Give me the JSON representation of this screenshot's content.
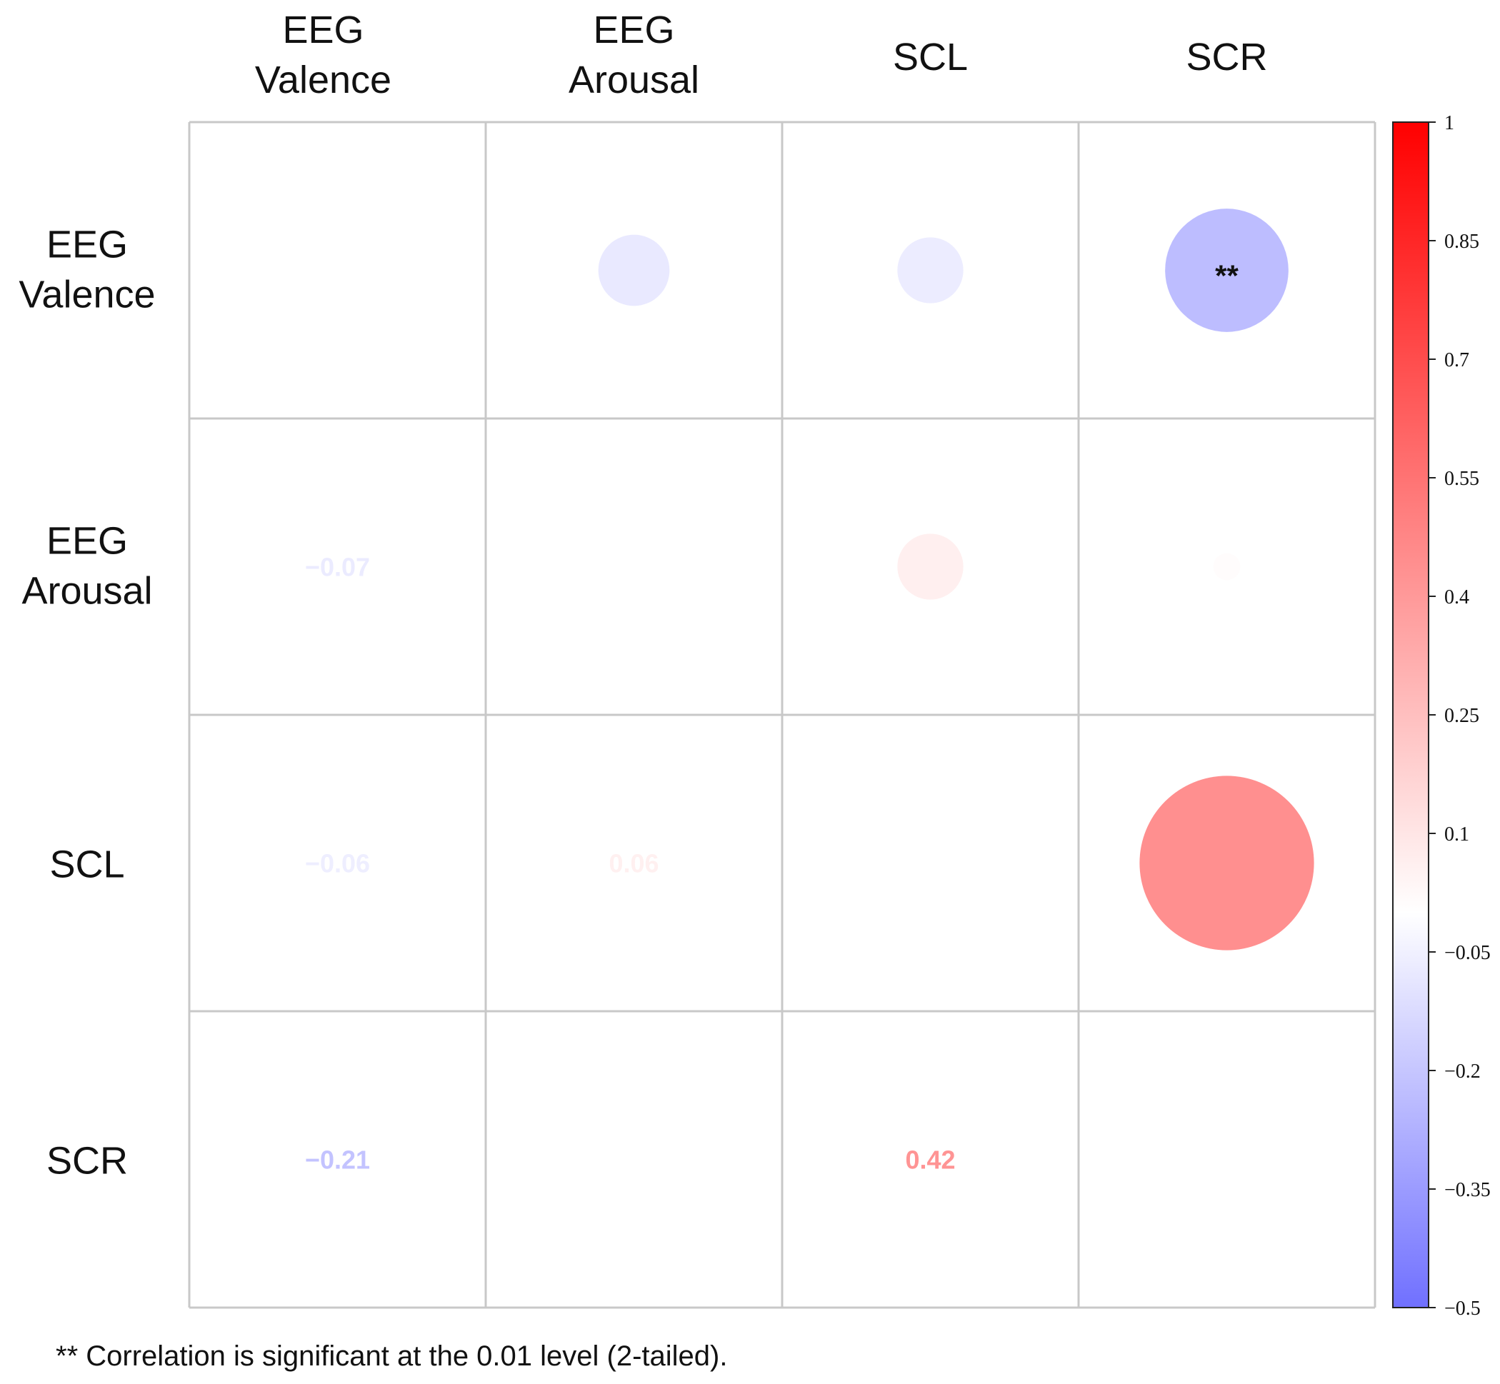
{
  "chart_data": {
    "type": "heatmap",
    "subtype": "correlation-matrix",
    "variables": [
      "EEG Valence",
      "EEG Arousal",
      "SCL",
      "SCR"
    ],
    "column_labels": [
      [
        "EEG",
        "Valence"
      ],
      [
        "EEG",
        "Arousal"
      ],
      [
        "SCL"
      ],
      [
        "SCR"
      ]
    ],
    "row_labels": [
      [
        "EEG",
        "Valence"
      ],
      [
        "EEG",
        "Arousal"
      ],
      [
        "SCL"
      ],
      [
        "SCR"
      ]
    ],
    "lower_triangle_values": [
      {
        "row": 1,
        "col": 0,
        "value": -0.07,
        "label": "−0.07"
      },
      {
        "row": 2,
        "col": 0,
        "value": -0.06,
        "label": "−0.06"
      },
      {
        "row": 2,
        "col": 1,
        "value": 0.06,
        "label": "0.06"
      },
      {
        "row": 3,
        "col": 0,
        "value": -0.21,
        "label": "−0.21"
      },
      {
        "row": 3,
        "col": 1,
        "value": 0.01,
        "label": ""
      },
      {
        "row": 3,
        "col": 2,
        "value": 0.42,
        "label": "0.42"
      }
    ],
    "upper_triangle_circles": [
      {
        "row": 0,
        "col": 1,
        "value": -0.07,
        "mark": ""
      },
      {
        "row": 0,
        "col": 2,
        "value": -0.06,
        "mark": ""
      },
      {
        "row": 0,
        "col": 3,
        "value": -0.21,
        "mark": "**"
      },
      {
        "row": 1,
        "col": 2,
        "value": 0.06,
        "mark": ""
      },
      {
        "row": 1,
        "col": 3,
        "value": 0.01,
        "mark": ""
      },
      {
        "row": 2,
        "col": 3,
        "value": 0.42,
        "mark": ""
      }
    ],
    "colorbar": {
      "range": [
        -0.5,
        1
      ],
      "ticks": [
        1,
        0.85,
        0.7,
        0.55,
        0.4,
        0.25,
        0.1,
        -0.05,
        -0.2,
        -0.35,
        -0.5
      ],
      "tick_labels": [
        "1",
        "0.85",
        "0.7",
        "0.55",
        "0.4",
        "0.25",
        "0.1",
        "−0.05",
        "−0.2",
        "−0.35",
        "−0.5"
      ],
      "colors": {
        "negative": "#7070ff",
        "neutral": "#ffffff",
        "positive": "#ff0000"
      }
    },
    "grid_color": "#c8c8c8",
    "footnote": "** Correlation is significant at the 0.01 level (2-tailed)."
  }
}
